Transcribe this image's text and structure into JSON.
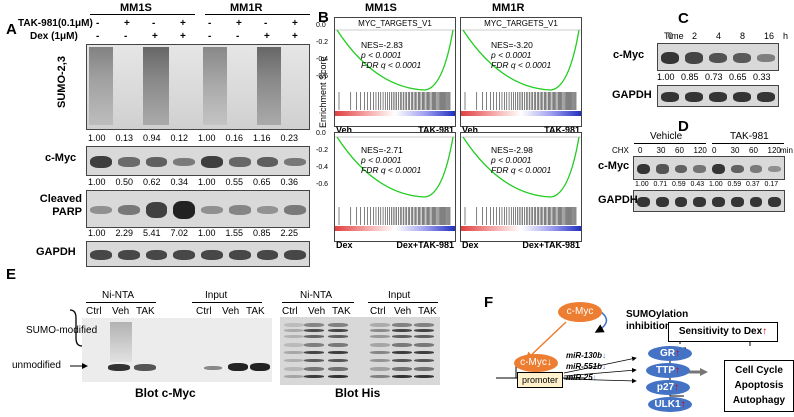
{
  "panelA": {
    "label": "A",
    "cell_lines": [
      "MM1S",
      "MM1R"
    ],
    "tak_label": "TAK-981(0.1μM)",
    "dex_label": "Dex (1μM)",
    "tak_signs": [
      "-",
      "+",
      "-",
      "+",
      "-",
      "+",
      "-",
      "+"
    ],
    "dex_signs": [
      "-",
      "-",
      "+",
      "+",
      "-",
      "-",
      "+",
      "+"
    ],
    "blots": [
      {
        "name": "SUMO-2,3",
        "values": [
          "1.00",
          "0.13",
          "0.94",
          "0.12",
          "1.00",
          "0.16",
          "1.16",
          "0.23"
        ]
      },
      {
        "name": "c-Myc",
        "values": [
          "1.00",
          "0.50",
          "0.62",
          "0.34",
          "1.00",
          "0.55",
          "0.65",
          "0.36"
        ]
      },
      {
        "name": "Cleaved PARP",
        "values": [
          "1.00",
          "2.29",
          "5.41",
          "7.02",
          "1.00",
          "1.55",
          "0.85",
          "2.25"
        ]
      },
      {
        "name": "GAPDH",
        "values": []
      }
    ]
  },
  "panelB": {
    "label": "B",
    "titles": [
      "MM1S",
      "MM1R"
    ],
    "ylabel": "Enrichment Score",
    "gene_set": "MYC_TARGETS_V1",
    "yticks_top": [
      "0.0",
      "-0.2",
      "-0.4",
      "-0.6"
    ],
    "yticks_bottom": [
      "0.0",
      "-0.2",
      "-0.4",
      "-0.6"
    ],
    "plots": [
      {
        "nes": "NES=-2.83",
        "p": "p < 0.0001",
        "fdr": "FDR q < 0.0001",
        "left": "Veh",
        "right": "TAK-981",
        "show_title": true
      },
      {
        "nes": "NES=-3.20",
        "p": "p < 0.0001",
        "fdr": "FDR q < 0.0001",
        "left": "Veh",
        "right": "TAK-981",
        "show_title": true
      },
      {
        "nes": "NES=-2.71",
        "p": "p < 0.0001",
        "fdr": "FDR q < 0.0001",
        "left": "Dex",
        "right": "Dex+TAK-981",
        "show_title": false
      },
      {
        "nes": "NES=-2.98",
        "p": "p < 0.0001",
        "fdr": "FDR q < 0.0001",
        "left": "Dex",
        "right": "Dex+TAK-981",
        "show_title": false
      }
    ]
  },
  "panelC": {
    "label": "C",
    "time_label": "Time",
    "times": [
      "0",
      "2",
      "4",
      "8",
      "16"
    ],
    "unit": "h",
    "blots": [
      "c-Myc",
      "GAPDH"
    ],
    "values": [
      "1.00",
      "0.85",
      "0.73",
      "0.65",
      "0.33"
    ]
  },
  "panelD": {
    "label": "D",
    "groups": [
      "Vehicle",
      "TAK-981"
    ],
    "chx_label": "CHX",
    "times": [
      "0",
      "30",
      "60",
      "120",
      "0",
      "30",
      "60",
      "120"
    ],
    "unit": "min",
    "blots": [
      "c-Myc",
      "GAPDH"
    ],
    "values": [
      "1.00",
      "0.71",
      "0.59",
      "0.43",
      "1.00",
      "0.59",
      "0.37",
      "0.17"
    ]
  },
  "panelE": {
    "label": "E",
    "groups_left": [
      "Ni-NTA",
      "Input"
    ],
    "groups_right": [
      "Ni-NTA",
      "Input"
    ],
    "lanes": [
      "Ctrl",
      "Veh",
      "TAK"
    ],
    "sumo_label": "SUMO-modified",
    "unmod_label": "unmodified",
    "blot_left": "Blot c-Myc",
    "blot_right": "Blot His"
  },
  "panelF": {
    "label": "F",
    "cmyc_top": "c-Myc",
    "sumo_text": "SUMOylation inhibition",
    "cmyc_bottom": "c-Myc",
    "promoter": "promoter",
    "mirnas": [
      "miR-130b",
      "miR-551b",
      "miR-25"
    ],
    "targets": [
      "GR",
      "TTP",
      "p27",
      "ULK1"
    ],
    "sensitivity": "Sensitivity to Dex",
    "outcome": [
      "Cell Cycle",
      "Apoptosis",
      "Autophagy"
    ],
    "colors": {
      "orange": "#ed7d31",
      "blue": "#4472c4",
      "red": "#e00000",
      "yellow": "#fff2cc"
    }
  }
}
